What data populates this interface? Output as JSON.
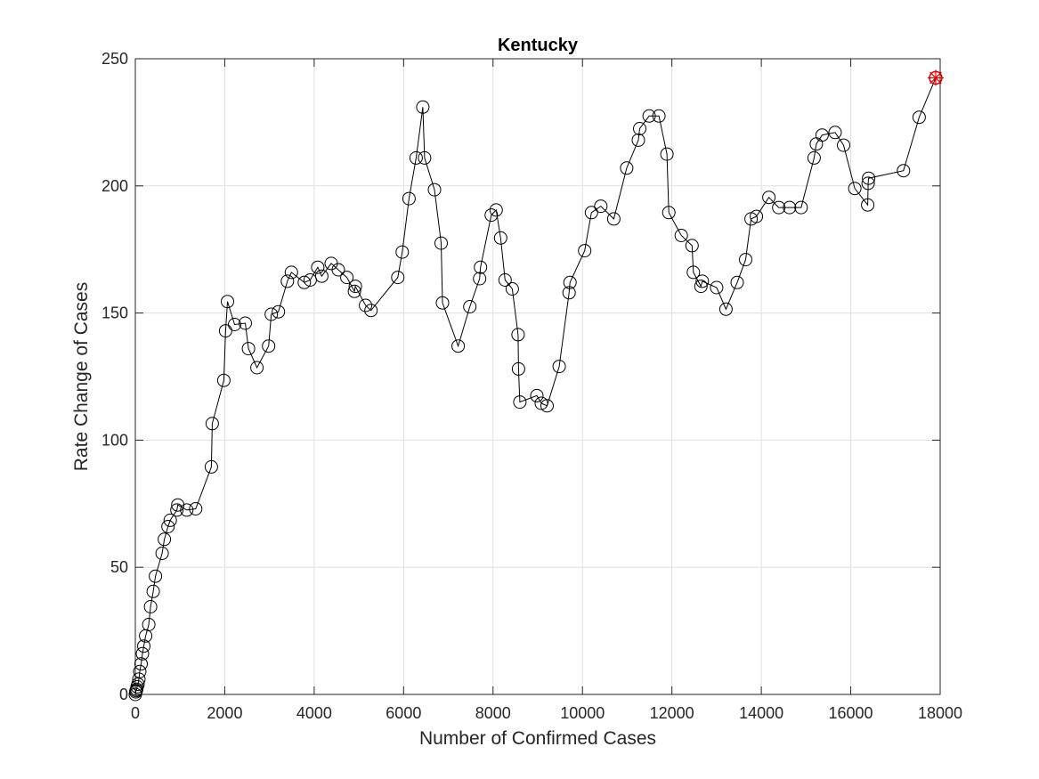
{
  "chart_data": {
    "type": "line",
    "title": "Kentucky",
    "xlabel": "Number of Confirmed Cases",
    "ylabel": "Rate Change of Cases",
    "xlim": [
      0,
      18000
    ],
    "ylim": [
      0,
      250
    ],
    "xticks": [
      0,
      2000,
      4000,
      6000,
      8000,
      10000,
      12000,
      14000,
      16000,
      18000
    ],
    "yticks": [
      0,
      50,
      100,
      150,
      200,
      250
    ],
    "grid": true,
    "marker": "open-circle",
    "line_color": "#000000",
    "highlight_color": "#e00000",
    "series": [
      {
        "x": [
          0,
          10,
          20,
          30,
          40,
          60,
          80,
          100,
          130,
          160,
          190,
          230,
          300,
          340,
          400,
          450,
          600,
          650,
          730,
          780,
          930,
          950,
          1150,
          1350,
          1700,
          1720,
          1980,
          2020,
          2060,
          2220,
          2460,
          2530,
          2720,
          2980,
          3040,
          3200,
          3400,
          3490,
          3780,
          3910,
          4080,
          4170,
          4380,
          4540,
          4730,
          4900,
          4920,
          5150,
          5270,
          5870,
          5970,
          6120,
          6280,
          6430,
          6470,
          6690,
          6840,
          6870,
          7220,
          7480,
          7700,
          7720,
          7960,
          8070,
          8170,
          8270,
          8430,
          8560,
          8570,
          8600,
          8980,
          9080,
          9210,
          9480,
          9700,
          9720,
          10050,
          10200,
          10410,
          10700,
          10990,
          11250,
          11280,
          11490,
          11710,
          11890,
          11930,
          12210,
          12450,
          12480,
          12650,
          12680,
          13000,
          13210,
          13460,
          13650,
          13770,
          13890,
          14170,
          14390,
          14630,
          14890,
          15180,
          15230,
          15360,
          15650,
          15840,
          16090,
          16380,
          16390,
          16400,
          17180,
          17530,
          17900
        ],
        "y": [
          0,
          1,
          1.5,
          2,
          3,
          4,
          6,
          9,
          12,
          16,
          19,
          23,
          27.5,
          34.5,
          40.5,
          46.5,
          55.5,
          61,
          66,
          68.5,
          72.5,
          74.5,
          72.5,
          73,
          89.5,
          106.5,
          123.5,
          143,
          154.5,
          145.5,
          146,
          136,
          128.5,
          137,
          149.5,
          150.5,
          162.5,
          166,
          162,
          163,
          168,
          164.5,
          169.5,
          167,
          164,
          158.5,
          160.5,
          153,
          151,
          164,
          174,
          195,
          211,
          231,
          211,
          198.5,
          177.5,
          154,
          137,
          152.5,
          163.5,
          168,
          188.5,
          190.5,
          179.5,
          163,
          159.5,
          141.5,
          128,
          115,
          117.5,
          114.5,
          113.5,
          129,
          158,
          162,
          174.5,
          189.5,
          192,
          187,
          207,
          218,
          222.5,
          227.5,
          227.5,
          212.5,
          189.5,
          180.5,
          176.5,
          166,
          160.5,
          162.5,
          160,
          151.5,
          162,
          171,
          187,
          188,
          195.5,
          191.5,
          191.5,
          191.5,
          211,
          216.5,
          220,
          221,
          216,
          199,
          192.5,
          201,
          203,
          206,
          227,
          242.5
        ]
      }
    ]
  }
}
